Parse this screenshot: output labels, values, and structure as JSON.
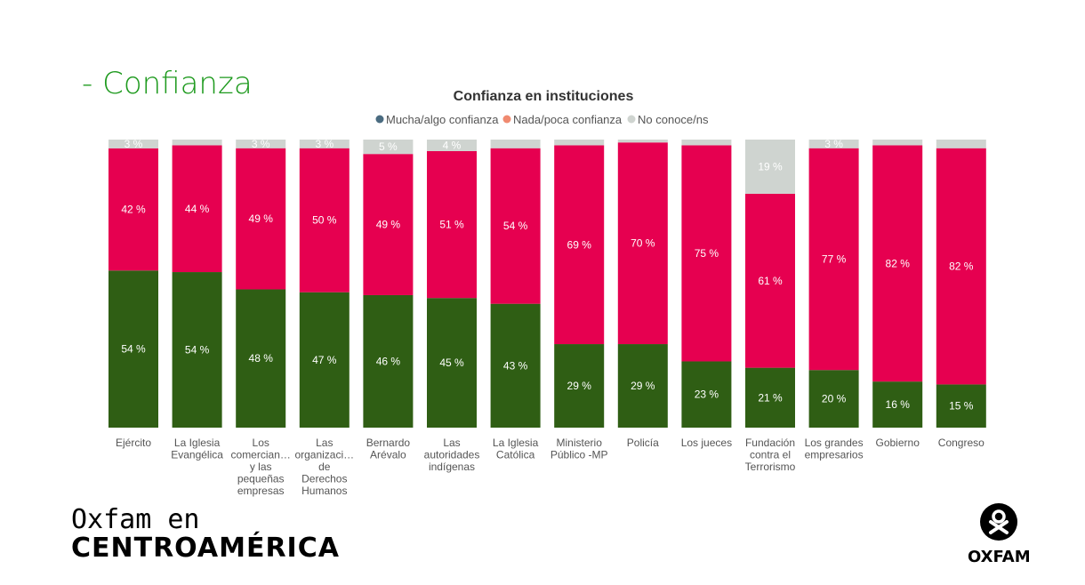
{
  "heading": "- Confianza",
  "branding": {
    "left_line1": "Oxfam en",
    "left_line2": "CENTROAMÉRICA",
    "right": "OXFAM"
  },
  "chart_data": {
    "type": "bar",
    "stacked": true,
    "title": "Confianza en instituciones",
    "legend_position": "top",
    "categories": [
      "Ejército",
      "La Iglesia Evangélica",
      "Los comercian… y las pequeñas empresas",
      "Las organizaci… de Derechos Humanos",
      "Bernardo Arévalo",
      "Las autoridades indígenas",
      "La Iglesia Católica",
      "Ministerio Público -MP",
      "Policía",
      "Los jueces",
      "Fundación contra el Terrorismo",
      "Los grandes empresarios",
      "Gobierno",
      "Congreso"
    ],
    "category_lines": [
      [
        "Ejército"
      ],
      [
        "La Iglesia",
        "Evangélica"
      ],
      [
        "Los",
        "comercian…",
        "y las",
        "pequeñas",
        "empresas"
      ],
      [
        "Las",
        "organizaci…",
        "de",
        "Derechos",
        "Humanos"
      ],
      [
        "Bernardo",
        "Arévalo"
      ],
      [
        "Las",
        "autoridades",
        "indígenas"
      ],
      [
        "La Iglesia",
        "Católica"
      ],
      [
        "Ministerio",
        "Público -MP"
      ],
      [
        "Policía"
      ],
      [
        "Los jueces"
      ],
      [
        "Fundación",
        "contra el",
        "Terrorismo"
      ],
      [
        "Los grandes",
        "empresarios"
      ],
      [
        "Gobierno"
      ],
      [
        "Congreso"
      ]
    ],
    "series": [
      {
        "name": "Mucha/algo confianza",
        "color": "#2f5e14",
        "legend_color": "#4a6b80",
        "values": [
          54,
          54,
          48,
          47,
          46,
          45,
          43,
          29,
          29,
          23,
          21,
          20,
          16,
          15
        ],
        "labels_shown": [
          true,
          true,
          true,
          true,
          true,
          true,
          true,
          true,
          true,
          true,
          true,
          true,
          true,
          true
        ]
      },
      {
        "name": "Nada/poca confianza",
        "color": "#e60050",
        "legend_color": "#f08a70",
        "values": [
          42,
          44,
          49,
          50,
          49,
          51,
          54,
          69,
          70,
          75,
          61,
          77,
          82,
          82
        ],
        "labels_shown": [
          true,
          true,
          true,
          true,
          true,
          true,
          true,
          true,
          true,
          true,
          true,
          true,
          true,
          true
        ]
      },
      {
        "name": "No conoce/ns",
        "color": "#cfd4d0",
        "legend_color": "#cfd4d0",
        "values": [
          3,
          2,
          3,
          3,
          5,
          4,
          3,
          2,
          1,
          2,
          19,
          3,
          2,
          3
        ],
        "labels_shown": [
          true,
          false,
          true,
          true,
          true,
          true,
          false,
          false,
          false,
          false,
          true,
          true,
          false,
          false
        ]
      }
    ],
    "value_suffix": " %",
    "ylim": [
      0,
      100
    ],
    "grid": false
  }
}
